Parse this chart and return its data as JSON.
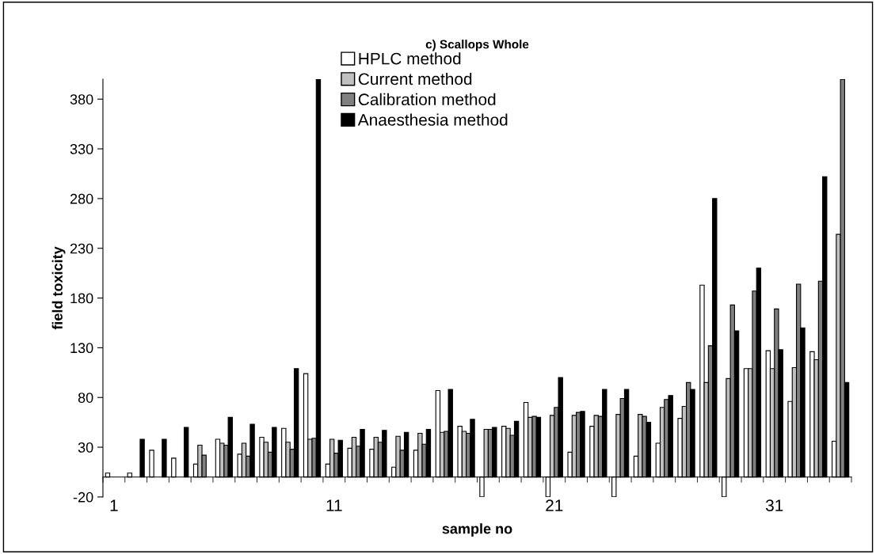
{
  "chart_data": {
    "type": "bar",
    "title": "c) Scallops Whole",
    "xlabel": "sample no",
    "ylabel": "field toxicity",
    "categories": [
      "1",
      null,
      null,
      null,
      null,
      null,
      null,
      null,
      null,
      null,
      "11",
      null,
      null,
      null,
      null,
      null,
      null,
      null,
      null,
      null,
      "21",
      null,
      null,
      null,
      null,
      null,
      null,
      null,
      null,
      null,
      "31",
      null,
      null,
      null
    ],
    "series": [
      {
        "name": "HPLC method",
        "color": "#ffffff",
        "values": [
          4,
          4,
          27,
          19,
          13,
          38,
          23,
          40,
          49,
          104,
          13,
          29,
          28,
          10,
          27,
          87,
          51,
          -20,
          51,
          75,
          -20,
          25,
          51,
          -20,
          21,
          34,
          59,
          193,
          -20,
          109,
          127,
          76,
          126,
          36
        ]
      },
      {
        "name": "Current method",
        "color": "#c0c0c0",
        "values": [
          null,
          null,
          null,
          null,
          32,
          34,
          34,
          35,
          35,
          38,
          38,
          40,
          40,
          41,
          44,
          45,
          46,
          48,
          49,
          60,
          62,
          62,
          62,
          63,
          63,
          70,
          71,
          95,
          99,
          109,
          109,
          110,
          118,
          244
        ]
      },
      {
        "name": "Calibration method",
        "color": "#808080",
        "values": [
          null,
          null,
          null,
          null,
          22,
          32,
          21,
          25,
          28,
          39,
          24,
          31,
          35,
          27,
          33,
          46,
          44,
          48,
          42,
          61,
          70,
          65,
          61,
          79,
          61,
          78,
          95,
          132,
          173,
          187,
          169,
          194,
          197,
          400
        ]
      },
      {
        "name": "Anaesthesia method",
        "color": "#000000",
        "values": [
          null,
          38,
          38,
          50,
          null,
          60,
          53,
          50,
          109,
          400,
          37,
          48,
          47,
          45,
          48,
          88,
          58,
          50,
          56,
          60,
          100,
          66,
          88,
          88,
          55,
          82,
          88,
          280,
          147,
          210,
          128,
          150,
          302,
          95
        ]
      }
    ],
    "ylim": [
      -20,
      400
    ],
    "yticks": [
      -20,
      30,
      80,
      130,
      180,
      230,
      280,
      330,
      380
    ],
    "grid": false,
    "legend": "top"
  }
}
